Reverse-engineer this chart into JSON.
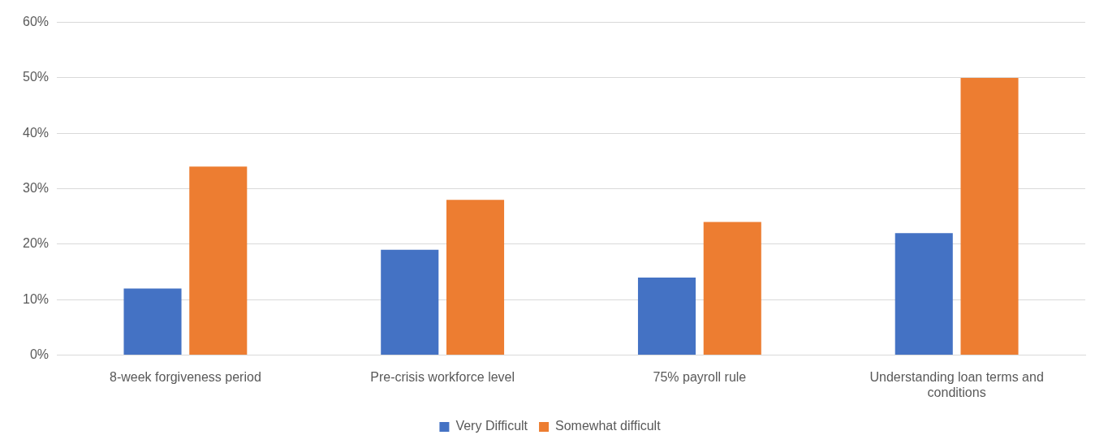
{
  "chart_data": {
    "type": "bar",
    "categories": [
      "8-week forgiveness period",
      "Pre-crisis workforce level",
      "75% payroll rule",
      "Understanding loan terms and conditions"
    ],
    "series": [
      {
        "name": "Very Difficult",
        "color": "#4472c4",
        "values": [
          12,
          19,
          14,
          22
        ]
      },
      {
        "name": "Somewhat difficult",
        "color": "#ed7d31",
        "values": [
          34,
          28,
          24,
          50
        ]
      }
    ],
    "ylim": [
      0,
      60
    ],
    "yticks": [
      {
        "value": 0,
        "label": "0%"
      },
      {
        "value": 10,
        "label": "10%"
      },
      {
        "value": 20,
        "label": "20%"
      },
      {
        "value": 30,
        "label": "30%"
      },
      {
        "value": 40,
        "label": "40%"
      },
      {
        "value": 50,
        "label": "50%"
      },
      {
        "value": 60,
        "label": "60%"
      }
    ],
    "grid": "y",
    "legend": "bottom"
  }
}
